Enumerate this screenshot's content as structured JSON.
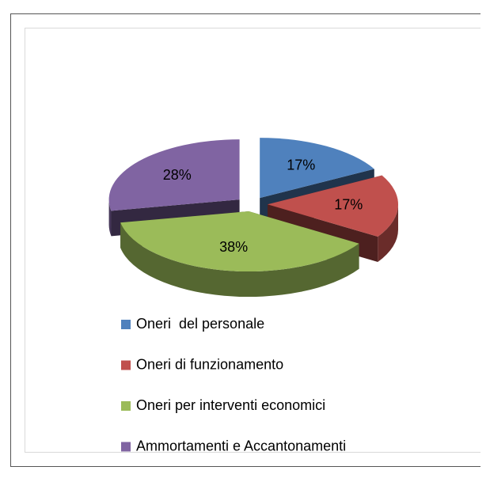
{
  "chart_data": {
    "type": "pie3d",
    "categories": [
      "Oneri  del personale",
      "Oneri di funzionamento",
      "Oneri per interventi economici",
      "Ammortamenti e Accantonamenti"
    ],
    "values": [
      17,
      17,
      38,
      28
    ],
    "value_labels": [
      "17%",
      "17%",
      "38%",
      "28%"
    ],
    "colors": [
      "#4f81bd",
      "#c0504d",
      "#9bbb59",
      "#8064a2"
    ],
    "legend": "bottom"
  }
}
